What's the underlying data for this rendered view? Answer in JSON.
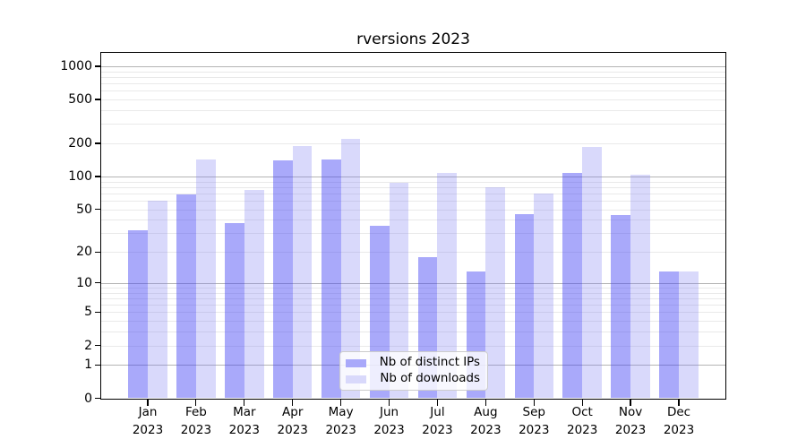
{
  "chart_data": {
    "type": "bar",
    "title": "rversions 2023",
    "categories": [
      "Jan",
      "Feb",
      "Mar",
      "Apr",
      "May",
      "Jun",
      "Jul",
      "Aug",
      "Sep",
      "Oct",
      "Nov",
      "Dec"
    ],
    "category_year": "2023",
    "series": [
      {
        "name": "Nb of distinct IPs",
        "solid_color": "#a9a9fa",
        "fill_rgba": "rgba(64,64,243,0.45)",
        "values": [
          32,
          68,
          37,
          139,
          142,
          35,
          18,
          13,
          45,
          107,
          44,
          13
        ]
      },
      {
        "name": "Nb of downloads",
        "solid_color": "#d9d9fb",
        "fill_rgba": "rgba(128,128,243,0.30)",
        "values": [
          60,
          143,
          75,
          190,
          218,
          87,
          107,
          80,
          70,
          185,
          104,
          13
        ]
      }
    ],
    "yticks": [
      0,
      1,
      2,
      5,
      10,
      20,
      50,
      100,
      200,
      500,
      1000
    ],
    "scale": "log1p",
    "ylim": [
      0,
      1300
    ],
    "grid": "horizontal",
    "grid_major_at": [
      1,
      10,
      100,
      1000
    ],
    "grid_major_color": "#b4b4b4",
    "grid_minor_color": "#e9e9e9",
    "legend_position": "lower-center",
    "xlabel": "",
    "ylabel": ""
  }
}
